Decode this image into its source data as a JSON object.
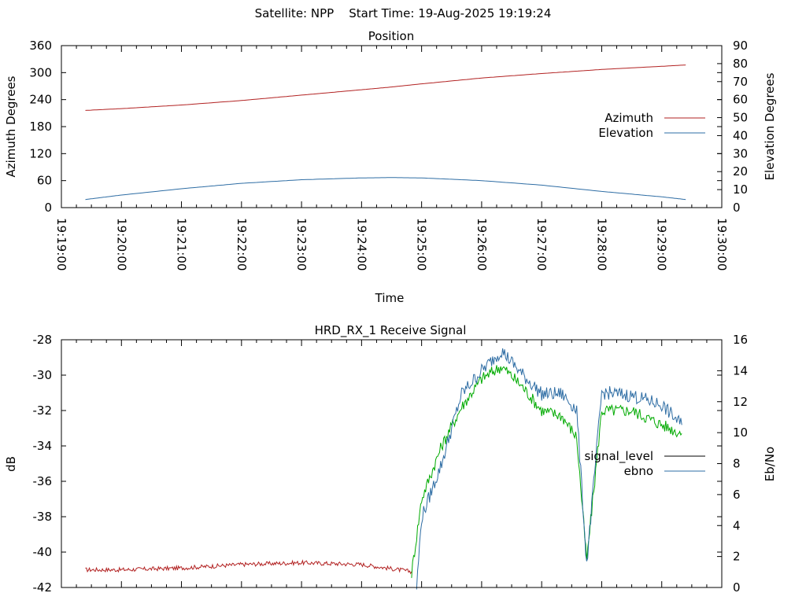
{
  "header": {
    "title": "Satellite: NPP    Start Time: 19-Aug-2025 19:19:24"
  },
  "chart_data": [
    {
      "type": "line",
      "title": "Position",
      "xlabel": "Time",
      "ylabel": "Azimuth Degrees",
      "y2label": "Elevation Degrees",
      "xlim": [
        "19:19:00",
        "19:30:00"
      ],
      "ylim": [
        0,
        360
      ],
      "y2lim": [
        0,
        90
      ],
      "x_ticks": [
        "19:19:00",
        "19:20:00",
        "19:21:00",
        "19:22:00",
        "19:23:00",
        "19:24:00",
        "19:25:00",
        "19:26:00",
        "19:27:00",
        "19:28:00",
        "19:29:00",
        "19:30:00"
      ],
      "y_ticks": [
        "0",
        "60",
        "120",
        "180",
        "240",
        "300",
        "360"
      ],
      "y2_ticks": [
        "0",
        "10",
        "20",
        "30",
        "40",
        "50",
        "60",
        "70",
        "80",
        "90"
      ],
      "legend_position": "right",
      "grid": false,
      "series": [
        {
          "name": "Azimuth",
          "axis": "left",
          "color": "#b22222",
          "x": [
            "19:19:24",
            "19:20:00",
            "19:21:00",
            "19:22:00",
            "19:23:00",
            "19:24:00",
            "19:24:30",
            "19:25:00",
            "19:26:00",
            "19:27:00",
            "19:28:00",
            "19:29:00",
            "19:29:24"
          ],
          "values": [
            216,
            220,
            228,
            238,
            250,
            262,
            268,
            275,
            288,
            298,
            307,
            314,
            317
          ]
        },
        {
          "name": "Elevation",
          "axis": "right",
          "color": "#2e6da4",
          "x": [
            "19:19:24",
            "19:20:00",
            "19:21:00",
            "19:22:00",
            "19:23:00",
            "19:24:00",
            "19:24:30",
            "19:25:00",
            "19:26:00",
            "19:27:00",
            "19:28:00",
            "19:29:00",
            "19:29:24"
          ],
          "values": [
            4.5,
            7,
            10.5,
            13.5,
            15.5,
            16.5,
            16.7,
            16.5,
            15,
            12.5,
            9,
            6,
            4.5
          ]
        }
      ]
    },
    {
      "type": "line",
      "title": "HRD_RX_1 Receive Signal",
      "xlabel": "",
      "ylabel": "dB",
      "y2label": "Eb/No",
      "xlim": [
        "19:19:00",
        "19:30:00"
      ],
      "ylim": [
        -42,
        -28
      ],
      "y2lim": [
        0,
        16
      ],
      "y_ticks": [
        "-42",
        "-40",
        "-38",
        "-36",
        "-34",
        "-32",
        "-30",
        "-28"
      ],
      "y2_ticks": [
        "0",
        "2",
        "4",
        "6",
        "8",
        "10",
        "12",
        "14",
        "16"
      ],
      "legend_position": "right",
      "grid": false,
      "series": [
        {
          "name": "signal_level",
          "axis": "left",
          "color": "#b22222",
          "x": [
            "19:19:24",
            "19:20:00",
            "19:21:00",
            "19:22:00",
            "19:23:00",
            "19:24:00",
            "19:24:50"
          ],
          "values": [
            -41.0,
            -41.0,
            -40.9,
            -40.7,
            -40.6,
            -40.7,
            -41.1
          ]
        },
        {
          "name": "signal_level",
          "axis": "left",
          "color": "#00aa00",
          "x": [
            "19:24:50",
            "19:25:00",
            "19:25:20",
            "19:25:40",
            "19:26:00",
            "19:26:20",
            "19:26:40",
            "19:27:00",
            "19:27:20",
            "19:27:35",
            "19:27:45",
            "19:28:00",
            "19:28:30",
            "19:29:00",
            "19:29:20"
          ],
          "values": [
            -41.2,
            -37.0,
            -34.0,
            -31.8,
            -30.2,
            -29.5,
            -30.6,
            -32.0,
            -32.3,
            -33.5,
            -40.5,
            -32.0,
            -32.0,
            -32.8,
            -33.3
          ]
        },
        {
          "name": "ebno",
          "axis": "right",
          "color": "#2e6da4",
          "x": [
            "19:24:55",
            "19:25:00",
            "19:25:20",
            "19:25:40",
            "19:26:00",
            "19:26:20",
            "19:26:40",
            "19:27:00",
            "19:27:20",
            "19:27:35",
            "19:27:45",
            "19:28:00",
            "19:28:30",
            "19:29:00",
            "19:29:20"
          ],
          "values": [
            0,
            4.5,
            8.0,
            12.5,
            14.0,
            15.3,
            13.8,
            12.5,
            12.5,
            11.5,
            1.5,
            12.6,
            12.4,
            11.8,
            10.5
          ]
        }
      ]
    }
  ]
}
